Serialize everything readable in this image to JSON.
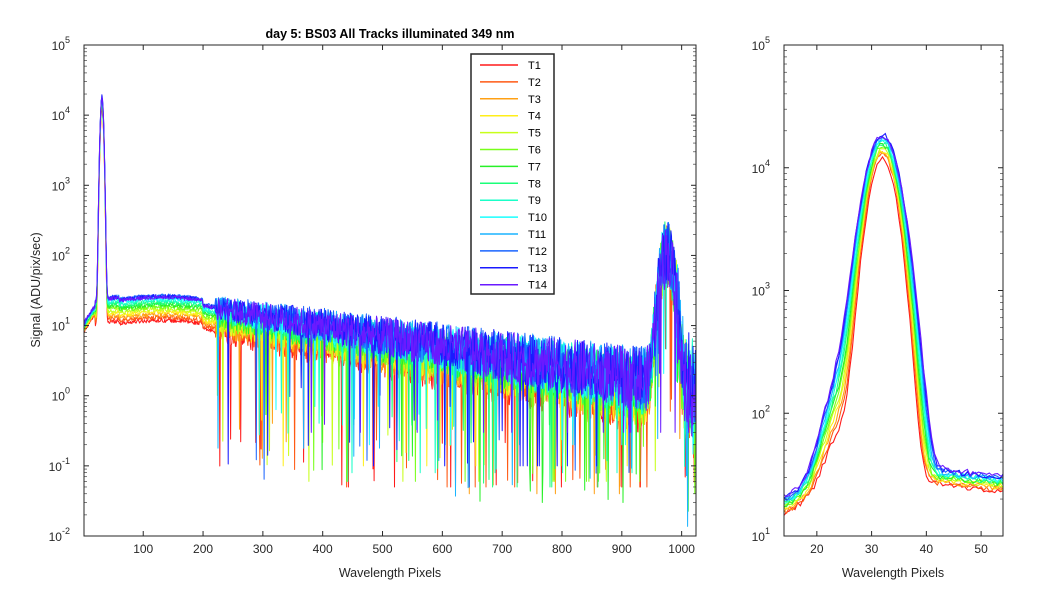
{
  "figure": {
    "title": "day 5: BS03   All Tracks illuminated   349 nm"
  },
  "chart_data": [
    {
      "type": "line",
      "title": "day 5: BS03   All Tracks illuminated   349 nm",
      "xlabel": "Wavelength Pixels",
      "ylabel": "Signal (ADU/pix/sec)",
      "xlim": [
        1,
        1024
      ],
      "ylim": [
        0.01,
        100000
      ],
      "yscale": "log",
      "xticks": [
        100,
        200,
        300,
        400,
        500,
        600,
        700,
        800,
        900,
        1000
      ],
      "yticks": [
        {
          "base": "10",
          "exp": "-2",
          "value": 0.01
        },
        {
          "base": "10",
          "exp": "-1",
          "value": 0.1
        },
        {
          "base": "10",
          "exp": "0",
          "value": 1
        },
        {
          "base": "10",
          "exp": "1",
          "value": 10
        },
        {
          "base": "10",
          "exp": "2",
          "value": 100
        },
        {
          "base": "10",
          "exp": "3",
          "value": 1000
        },
        {
          "base": "10",
          "exp": "4",
          "value": 10000
        },
        {
          "base": "10",
          "exp": "5",
          "value": 100000
        }
      ],
      "legend": "top-center",
      "grid": false,
      "series": [
        {
          "name": "T1",
          "color": "#ff1a1a",
          "peak": 12000,
          "peak2": 90,
          "bump": 14,
          "noise_floor": 0.05
        },
        {
          "name": "T2",
          "color": "#ff5a14",
          "peak": 13000,
          "peak2": 95,
          "bump": 15,
          "noise_floor": 0.05
        },
        {
          "name": "T3",
          "color": "#ffa014",
          "peak": 13500,
          "peak2": 98,
          "bump": 16,
          "noise_floor": 0.04
        },
        {
          "name": "T4",
          "color": "#ffee1a",
          "peak": 14000,
          "peak2": 100,
          "bump": 17,
          "noise_floor": 0.1
        },
        {
          "name": "T5",
          "color": "#c8ff1a",
          "peak": 14500,
          "peak2": 102,
          "bump": 18,
          "noise_floor": 0.06
        },
        {
          "name": "T6",
          "color": "#78ff1a",
          "peak": 15000,
          "peak2": 104,
          "bump": 19,
          "noise_floor": 0.06
        },
        {
          "name": "T7",
          "color": "#28f028",
          "peak": 15500,
          "peak2": 106,
          "bump": 20,
          "noise_floor": 0.03
        },
        {
          "name": "T8",
          "color": "#1aff78",
          "peak": 16000,
          "peak2": 108,
          "bump": 21,
          "noise_floor": 0.05
        },
        {
          "name": "T9",
          "color": "#1affc8",
          "peak": 16500,
          "peak2": 110,
          "bump": 22,
          "noise_floor": 0.08
        },
        {
          "name": "T10",
          "color": "#1affff",
          "peak": 17000,
          "peak2": 112,
          "bump": 23,
          "noise_floor": 0.2
        },
        {
          "name": "T11",
          "color": "#1ab4ff",
          "peak": 17500,
          "peak2": 114,
          "bump": 24,
          "noise_floor": 0.02
        },
        {
          "name": "T12",
          "color": "#1a64ff",
          "peak": 18000,
          "peak2": 110,
          "bump": 24,
          "noise_floor": 0.05
        },
        {
          "name": "T13",
          "color": "#1a1aff",
          "peak": 18500,
          "peak2": 105,
          "bump": 23,
          "noise_floor": 0.1
        },
        {
          "name": "T14",
          "color": "#6a1aff",
          "peak": 18000,
          "peak2": 100,
          "bump": 22,
          "noise_floor": 0.3
        }
      ]
    },
    {
      "type": "line",
      "title": "",
      "xlabel": "Wavelength Pixels",
      "ylabel": "",
      "xlim": [
        14,
        54
      ],
      "ylim": [
        10,
        100000
      ],
      "yscale": "log",
      "xticks": [
        20,
        30,
        40,
        50
      ],
      "yticks": [
        {
          "base": "10",
          "exp": "1",
          "value": 10
        },
        {
          "base": "10",
          "exp": "2",
          "value": 100
        },
        {
          "base": "10",
          "exp": "3",
          "value": 1000
        },
        {
          "base": "10",
          "exp": "4",
          "value": 10000
        },
        {
          "base": "10",
          "exp": "5",
          "value": 100000
        }
      ],
      "grid": false
    }
  ]
}
